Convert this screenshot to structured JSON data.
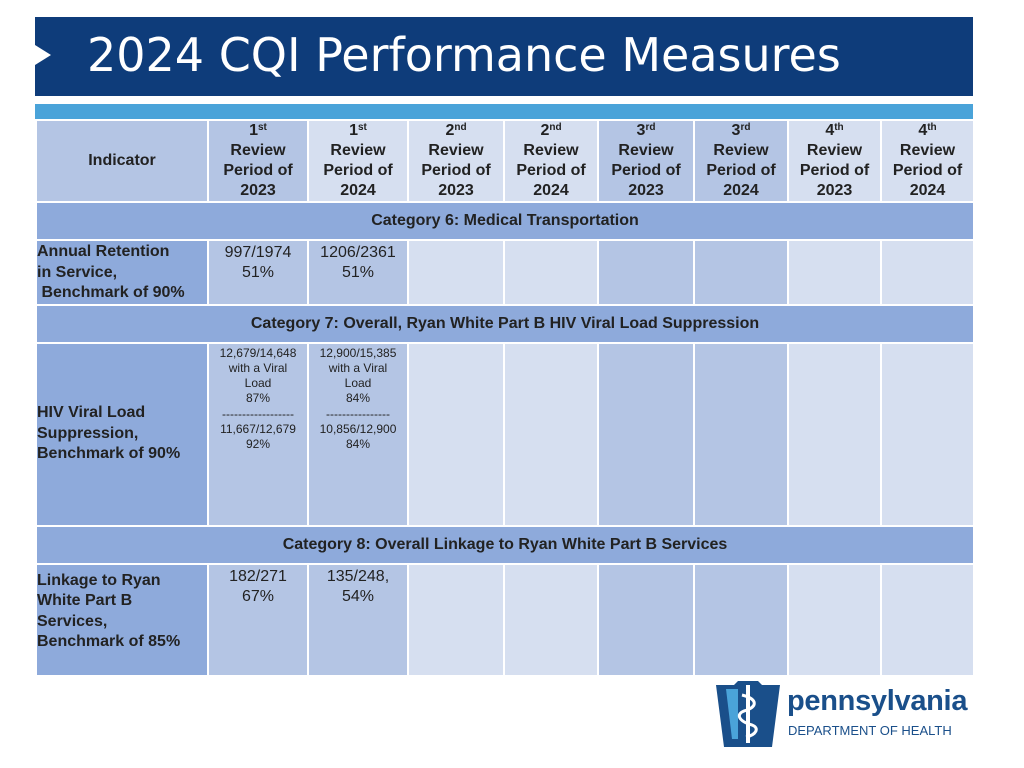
{
  "title": "2024 CQI Performance Measures",
  "table": {
    "indicator_header": "Indicator",
    "periods": [
      {
        "ord": "1",
        "sup": "st",
        "line1": "Review",
        "line2": "Period of",
        "year": "2023"
      },
      {
        "ord": "1",
        "sup": "st",
        "line1": "Review",
        "line2": "Period of",
        "year": "2024"
      },
      {
        "ord": "2",
        "sup": "nd",
        "line1": "Review",
        "line2": "Period of",
        "year": "2023"
      },
      {
        "ord": "2",
        "sup": "nd",
        "line1": "Review",
        "line2": "Period of",
        "year": "2024"
      },
      {
        "ord": "3",
        "sup": "rd",
        "line1": "Review",
        "line2": "Period of",
        "year": "2023"
      },
      {
        "ord": "3",
        "sup": "rd",
        "line1": "Review",
        "line2": "Period of",
        "year": "2024"
      },
      {
        "ord": "4",
        "sup": "th",
        "line1": "Review",
        "line2": "Period of",
        "year": "2023"
      },
      {
        "ord": "4",
        "sup": "th",
        "line1": "Review",
        "line2": "Period of",
        "year": "2024"
      }
    ],
    "categories": [
      {
        "title": "Category 6:  Medical Transportation",
        "indicator": [
          "Annual Retention",
          "in Service,",
          " Benchmark of 90%"
        ],
        "values": [
          [
            "997/1974",
            "51%"
          ],
          [
            "1206/2361",
            "51%"
          ]
        ]
      },
      {
        "title": "Category 7:  Overall, Ryan White Part B HIV Viral Load Suppression",
        "indicator": [
          "HIV Viral Load",
          "Suppression,",
          "Benchmark of 90%"
        ],
        "values": [
          [
            "12,679/14,648",
            "with a Viral",
            "Load",
            "87%",
            "------------------",
            "11,667/12,679",
            "92%"
          ],
          [
            "12,900/15,385",
            "with a Viral",
            "Load",
            "84%",
            "----------------",
            "10,856/12,900",
            "84%"
          ]
        ]
      },
      {
        "title": "Category 8:  Overall Linkage to Ryan White Part B Services",
        "indicator": [
          "Linkage to Ryan",
          "White Part B",
          "Services,",
          "Benchmark of 85%"
        ],
        "values": [
          [
            "182/271",
            "67%"
          ],
          [
            "135/248,",
            "54%"
          ]
        ]
      }
    ]
  },
  "logo": {
    "name": "pennsylvania",
    "department": "DEPARTMENT OF HEALTH"
  },
  "colors": {
    "title_bar": "#0e3c7a",
    "accent_strip": "#4aa3d9",
    "category_row": "#8eaadb",
    "cell_dark": "#b4c5e4",
    "cell_light": "#d6dff0",
    "logo_blue": "#1a4f8a"
  }
}
